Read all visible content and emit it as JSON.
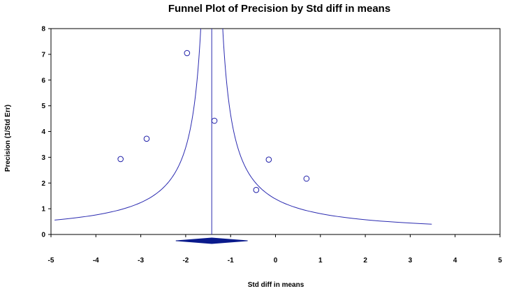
{
  "chart_data": {
    "type": "scatter",
    "title": "Funnel Plot of Precision by Std diff in means",
    "xlabel": "Std diff in means",
    "ylabel": "Precision (1/Std Err)",
    "xlim": [
      -5,
      5
    ],
    "ylim": [
      0,
      8
    ],
    "x_ticks": [
      "-5",
      "-4",
      "-3",
      "-2",
      "-1",
      "0",
      "1",
      "2",
      "3",
      "4",
      "5"
    ],
    "y_ticks": [
      "0",
      "1",
      "2",
      "3",
      "4",
      "5",
      "6",
      "7",
      "8"
    ],
    "grid": false,
    "points": [
      {
        "x": -3.45,
        "y": 2.93
      },
      {
        "x": -2.87,
        "y": 3.72
      },
      {
        "x": -1.97,
        "y": 7.05
      },
      {
        "x": -1.36,
        "y": 4.42
      },
      {
        "x": -0.43,
        "y": 1.73
      },
      {
        "x": -0.15,
        "y": 2.91
      },
      {
        "x": 0.69,
        "y": 2.17
      }
    ],
    "pooled_estimate": -1.42,
    "pooled_ci": [
      -2.22,
      -0.62
    ],
    "funnel_z": 1.96,
    "colors": {
      "marker": "#1f1fa8",
      "funnel": "#2a2ab0",
      "diamond": "#0a1a8c",
      "axes": "#000000"
    }
  }
}
